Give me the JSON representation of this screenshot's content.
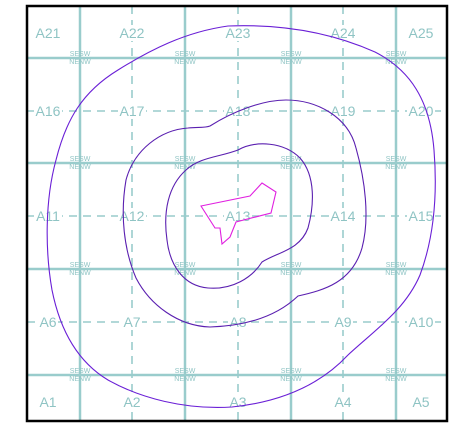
{
  "map": {
    "grid_cells": [
      [
        "A21",
        "A22",
        "A23",
        "A24",
        "A25"
      ],
      [
        "A16",
        "A17",
        "A18",
        "A19",
        "A20"
      ],
      [
        "A11",
        "A12",
        "A13",
        "A14",
        "A15"
      ],
      [
        "A6",
        "A7",
        "A8",
        "A9",
        "A10"
      ],
      [
        "A1",
        "A2",
        "A3",
        "A4",
        "A5"
      ]
    ],
    "quarter_labels": {
      "top": "SESW",
      "bottom": "NENW"
    },
    "colors": {
      "grid": "#99cccc",
      "border": "#000000",
      "cell_label": "#8fc4c4",
      "contour_outer": "#6a1fd6",
      "contour_inner": "#5a1fb0",
      "source_polygon": "#e020e0"
    }
  }
}
